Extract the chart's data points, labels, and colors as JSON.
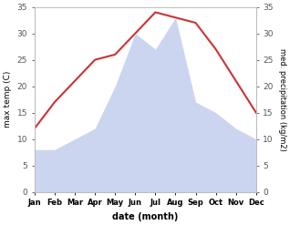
{
  "months": [
    "Jan",
    "Feb",
    "Mar",
    "Apr",
    "May",
    "Jun",
    "Jul",
    "Aug",
    "Sep",
    "Oct",
    "Nov",
    "Dec"
  ],
  "temperature": [
    12,
    17,
    21,
    25,
    26,
    30,
    34,
    33,
    32,
    27,
    21,
    15
  ],
  "precipitation": [
    8,
    8,
    10,
    12,
    20,
    30,
    27,
    33,
    17,
    15,
    12,
    10
  ],
  "temp_color": "#cc3333",
  "precip_color_fill": "#ccd5f0",
  "ylim": [
    0,
    35
  ],
  "ylim_right": [
    0,
    35
  ],
  "ylabel_left": "max temp (C)",
  "ylabel_right": "med. precipitation (kg/m2)",
  "xlabel": "date (month)",
  "bg_color": "#ffffff",
  "spine_color": "#bbbbbb",
  "tick_color": "#555555"
}
